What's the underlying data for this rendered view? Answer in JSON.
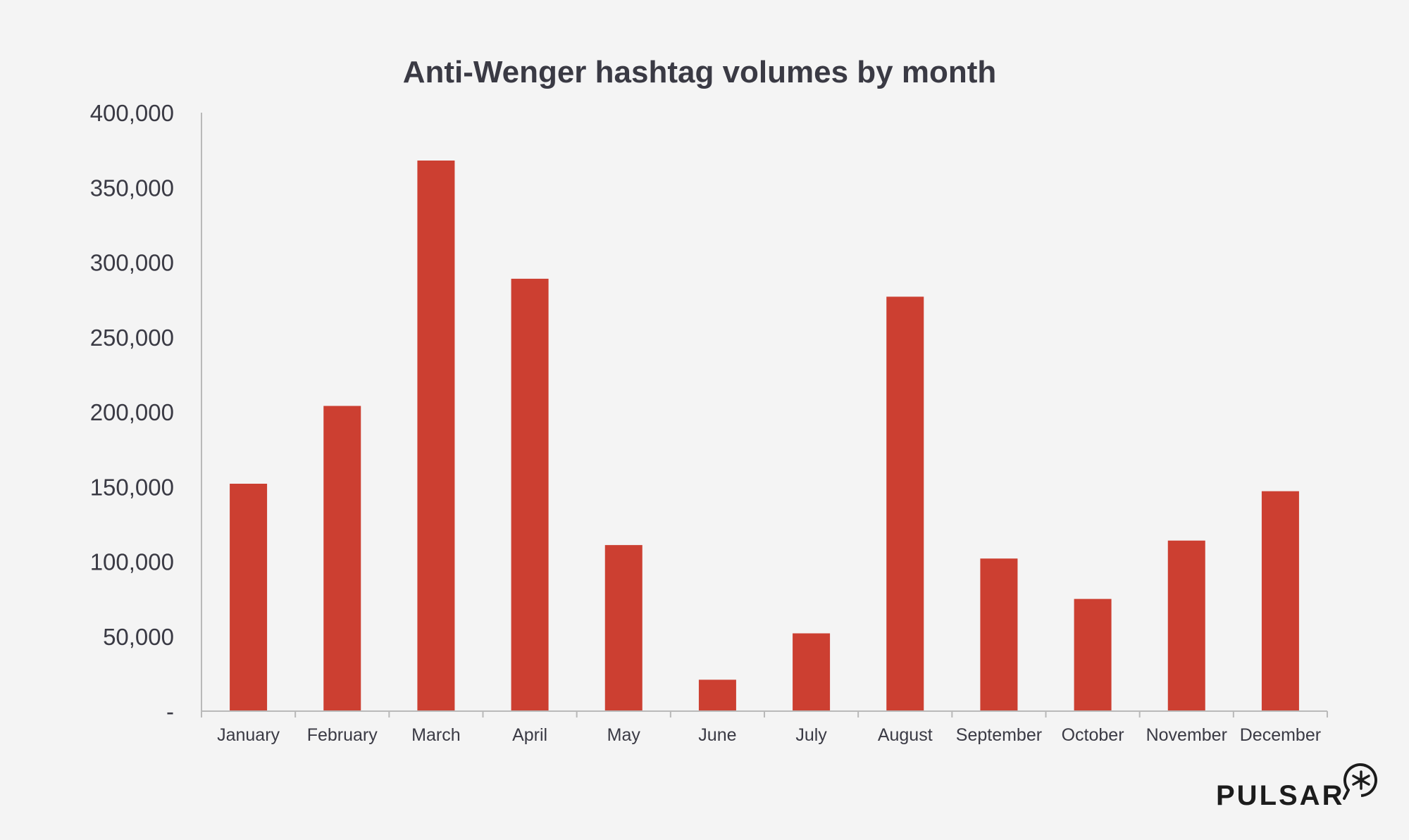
{
  "chart_data": {
    "type": "bar",
    "title": "Anti-Wenger hashtag volumes by month",
    "xlabel": "",
    "ylabel": "",
    "categories": [
      "January",
      "February",
      "March",
      "April",
      "May",
      "June",
      "July",
      "August",
      "September",
      "October",
      "November",
      "December"
    ],
    "values": [
      152000,
      204000,
      368000,
      289000,
      111000,
      21000,
      52000,
      277000,
      102000,
      75000,
      114000,
      147000
    ],
    "ylim": [
      0,
      400000
    ],
    "y_ticks": [
      0,
      50000,
      100000,
      150000,
      200000,
      250000,
      300000,
      350000,
      400000
    ],
    "y_tick_labels": [
      "-",
      "50,000",
      "100,000",
      "150,000",
      "200,000",
      "250,000",
      "300,000",
      "350,000",
      "400,000"
    ],
    "bar_color": "#cc3f31",
    "grid": false,
    "legend": "none"
  },
  "brand": {
    "logo_text": "PULSAR",
    "logo_icon": "asterisk-badge-icon"
  }
}
